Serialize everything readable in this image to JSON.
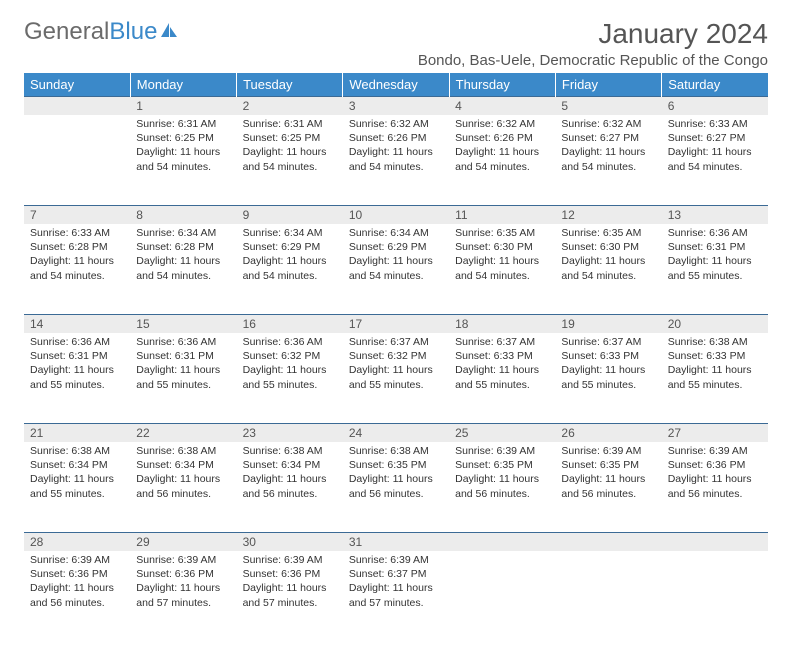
{
  "logo": {
    "text1": "General",
    "text2": "Blue"
  },
  "title": "January 2024",
  "location": "Bondo, Bas-Uele, Democratic Republic of the Congo",
  "colors": {
    "header_bg": "#3b89c9",
    "header_text": "#ffffff",
    "daynum_bg": "#ececec",
    "rule": "#3b6a95",
    "text": "#333333",
    "title_text": "#555555"
  },
  "weekdays": [
    "Sunday",
    "Monday",
    "Tuesday",
    "Wednesday",
    "Thursday",
    "Friday",
    "Saturday"
  ],
  "weeks": [
    {
      "nums": [
        "",
        "1",
        "2",
        "3",
        "4",
        "5",
        "6"
      ],
      "cells": [
        {
          "sunrise": "",
          "sunset": "",
          "daylight": ""
        },
        {
          "sunrise": "Sunrise: 6:31 AM",
          "sunset": "Sunset: 6:25 PM",
          "daylight": "Daylight: 11 hours and 54 minutes."
        },
        {
          "sunrise": "Sunrise: 6:31 AM",
          "sunset": "Sunset: 6:25 PM",
          "daylight": "Daylight: 11 hours and 54 minutes."
        },
        {
          "sunrise": "Sunrise: 6:32 AM",
          "sunset": "Sunset: 6:26 PM",
          "daylight": "Daylight: 11 hours and 54 minutes."
        },
        {
          "sunrise": "Sunrise: 6:32 AM",
          "sunset": "Sunset: 6:26 PM",
          "daylight": "Daylight: 11 hours and 54 minutes."
        },
        {
          "sunrise": "Sunrise: 6:32 AM",
          "sunset": "Sunset: 6:27 PM",
          "daylight": "Daylight: 11 hours and 54 minutes."
        },
        {
          "sunrise": "Sunrise: 6:33 AM",
          "sunset": "Sunset: 6:27 PM",
          "daylight": "Daylight: 11 hours and 54 minutes."
        }
      ]
    },
    {
      "nums": [
        "7",
        "8",
        "9",
        "10",
        "11",
        "12",
        "13"
      ],
      "cells": [
        {
          "sunrise": "Sunrise: 6:33 AM",
          "sunset": "Sunset: 6:28 PM",
          "daylight": "Daylight: 11 hours and 54 minutes."
        },
        {
          "sunrise": "Sunrise: 6:34 AM",
          "sunset": "Sunset: 6:28 PM",
          "daylight": "Daylight: 11 hours and 54 minutes."
        },
        {
          "sunrise": "Sunrise: 6:34 AM",
          "sunset": "Sunset: 6:29 PM",
          "daylight": "Daylight: 11 hours and 54 minutes."
        },
        {
          "sunrise": "Sunrise: 6:34 AM",
          "sunset": "Sunset: 6:29 PM",
          "daylight": "Daylight: 11 hours and 54 minutes."
        },
        {
          "sunrise": "Sunrise: 6:35 AM",
          "sunset": "Sunset: 6:30 PM",
          "daylight": "Daylight: 11 hours and 54 minutes."
        },
        {
          "sunrise": "Sunrise: 6:35 AM",
          "sunset": "Sunset: 6:30 PM",
          "daylight": "Daylight: 11 hours and 54 minutes."
        },
        {
          "sunrise": "Sunrise: 6:36 AM",
          "sunset": "Sunset: 6:31 PM",
          "daylight": "Daylight: 11 hours and 55 minutes."
        }
      ]
    },
    {
      "nums": [
        "14",
        "15",
        "16",
        "17",
        "18",
        "19",
        "20"
      ],
      "cells": [
        {
          "sunrise": "Sunrise: 6:36 AM",
          "sunset": "Sunset: 6:31 PM",
          "daylight": "Daylight: 11 hours and 55 minutes."
        },
        {
          "sunrise": "Sunrise: 6:36 AM",
          "sunset": "Sunset: 6:31 PM",
          "daylight": "Daylight: 11 hours and 55 minutes."
        },
        {
          "sunrise": "Sunrise: 6:36 AM",
          "sunset": "Sunset: 6:32 PM",
          "daylight": "Daylight: 11 hours and 55 minutes."
        },
        {
          "sunrise": "Sunrise: 6:37 AM",
          "sunset": "Sunset: 6:32 PM",
          "daylight": "Daylight: 11 hours and 55 minutes."
        },
        {
          "sunrise": "Sunrise: 6:37 AM",
          "sunset": "Sunset: 6:33 PM",
          "daylight": "Daylight: 11 hours and 55 minutes."
        },
        {
          "sunrise": "Sunrise: 6:37 AM",
          "sunset": "Sunset: 6:33 PM",
          "daylight": "Daylight: 11 hours and 55 minutes."
        },
        {
          "sunrise": "Sunrise: 6:38 AM",
          "sunset": "Sunset: 6:33 PM",
          "daylight": "Daylight: 11 hours and 55 minutes."
        }
      ]
    },
    {
      "nums": [
        "21",
        "22",
        "23",
        "24",
        "25",
        "26",
        "27"
      ],
      "cells": [
        {
          "sunrise": "Sunrise: 6:38 AM",
          "sunset": "Sunset: 6:34 PM",
          "daylight": "Daylight: 11 hours and 55 minutes."
        },
        {
          "sunrise": "Sunrise: 6:38 AM",
          "sunset": "Sunset: 6:34 PM",
          "daylight": "Daylight: 11 hours and 56 minutes."
        },
        {
          "sunrise": "Sunrise: 6:38 AM",
          "sunset": "Sunset: 6:34 PM",
          "daylight": "Daylight: 11 hours and 56 minutes."
        },
        {
          "sunrise": "Sunrise: 6:38 AM",
          "sunset": "Sunset: 6:35 PM",
          "daylight": "Daylight: 11 hours and 56 minutes."
        },
        {
          "sunrise": "Sunrise: 6:39 AM",
          "sunset": "Sunset: 6:35 PM",
          "daylight": "Daylight: 11 hours and 56 minutes."
        },
        {
          "sunrise": "Sunrise: 6:39 AM",
          "sunset": "Sunset: 6:35 PM",
          "daylight": "Daylight: 11 hours and 56 minutes."
        },
        {
          "sunrise": "Sunrise: 6:39 AM",
          "sunset": "Sunset: 6:36 PM",
          "daylight": "Daylight: 11 hours and 56 minutes."
        }
      ]
    },
    {
      "nums": [
        "28",
        "29",
        "30",
        "31",
        "",
        "",
        ""
      ],
      "cells": [
        {
          "sunrise": "Sunrise: 6:39 AM",
          "sunset": "Sunset: 6:36 PM",
          "daylight": "Daylight: 11 hours and 56 minutes."
        },
        {
          "sunrise": "Sunrise: 6:39 AM",
          "sunset": "Sunset: 6:36 PM",
          "daylight": "Daylight: 11 hours and 57 minutes."
        },
        {
          "sunrise": "Sunrise: 6:39 AM",
          "sunset": "Sunset: 6:36 PM",
          "daylight": "Daylight: 11 hours and 57 minutes."
        },
        {
          "sunrise": "Sunrise: 6:39 AM",
          "sunset": "Sunset: 6:37 PM",
          "daylight": "Daylight: 11 hours and 57 minutes."
        },
        {
          "sunrise": "",
          "sunset": "",
          "daylight": ""
        },
        {
          "sunrise": "",
          "sunset": "",
          "daylight": ""
        },
        {
          "sunrise": "",
          "sunset": "",
          "daylight": ""
        }
      ]
    }
  ]
}
